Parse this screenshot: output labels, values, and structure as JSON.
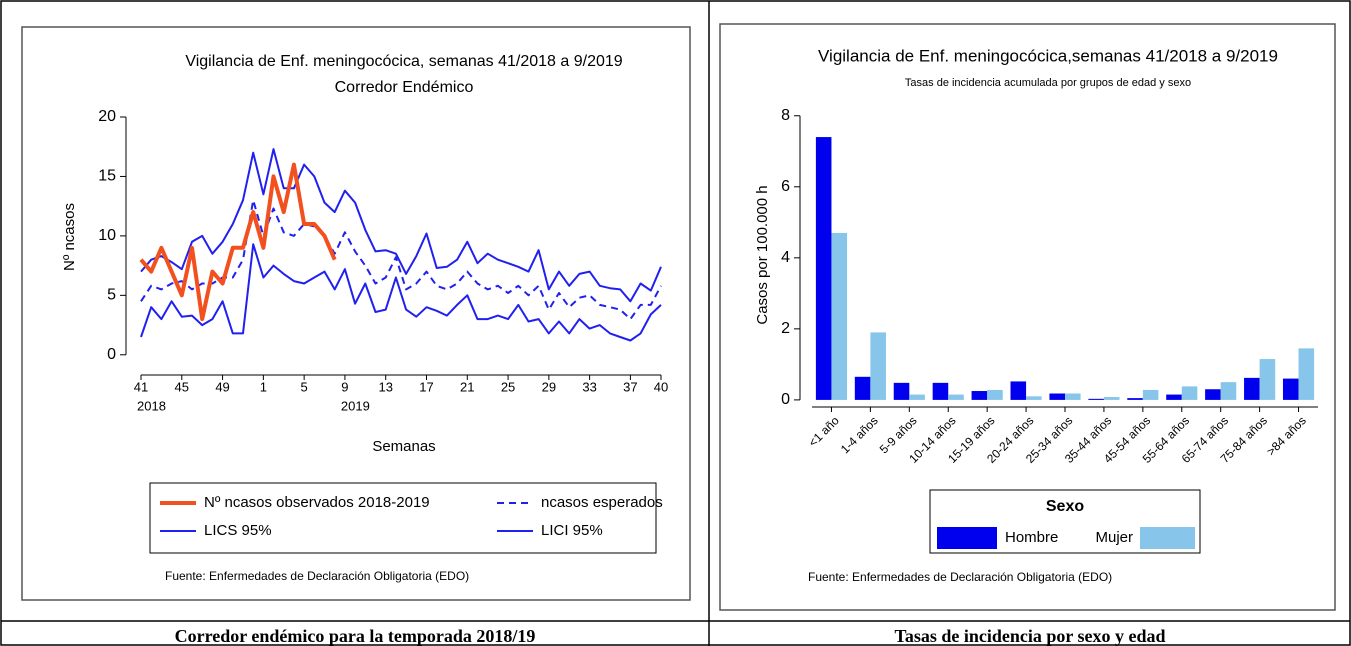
{
  "chart_data": [
    {
      "type": "line",
      "title": "Vigilancia de Enf. meningocócica, semanas 41/2018 a 9/2019",
      "subtitle": "Corredor Endémico",
      "ylabel": "Nº ncasos",
      "xlabel": "Semanas",
      "note": "Fuente: Enfermedades de Declaración Obligatoria (EDO)",
      "caption": "Corredor endémico para la temporada 2018/19",
      "categories": [
        "41",
        null,
        null,
        null,
        "45",
        null,
        null,
        null,
        "49",
        null,
        null,
        null,
        "1",
        null,
        null,
        null,
        "5",
        null,
        null,
        null,
        "9",
        null,
        null,
        null,
        "13",
        null,
        null,
        null,
        "17",
        null,
        null,
        null,
        "21",
        null,
        null,
        null,
        "25",
        null,
        null,
        null,
        "29",
        null,
        null,
        null,
        "33",
        null,
        null,
        null,
        "37",
        null,
        null,
        "40"
      ],
      "category_groups": [
        "2018",
        null,
        null,
        null,
        null,
        null,
        null,
        null,
        null,
        null,
        null,
        null,
        null,
        null,
        null,
        null,
        null,
        null,
        null,
        null,
        "2019",
        null,
        null,
        null,
        null,
        null,
        null,
        null,
        null,
        null,
        null,
        null,
        null,
        null,
        null,
        null,
        null,
        null,
        null,
        null,
        null,
        null,
        null,
        null,
        null,
        null,
        null,
        null,
        null,
        null,
        null,
        null
      ],
      "ylim": [
        -1.7,
        20
      ],
      "yticks": [
        0,
        5,
        10,
        15,
        20
      ],
      "series": [
        {
          "name": "Nº ncasos observados 2018-2019",
          "color": "#f2501f",
          "dash": false,
          "width": 4,
          "values": [
            8,
            7,
            9,
            7,
            5,
            9,
            3,
            7,
            6,
            9,
            9,
            12,
            9,
            15,
            12,
            16,
            11,
            11,
            10,
            8,
            null,
            null,
            null,
            null,
            null,
            null,
            null,
            null,
            null,
            null,
            null,
            null,
            null,
            null,
            null,
            null,
            null,
            null,
            null,
            null,
            null,
            null,
            null,
            null,
            null,
            null,
            null,
            null,
            null,
            null,
            null,
            null
          ]
        },
        {
          "name": "ncasos esperados",
          "color": "#2020f0",
          "dash": true,
          "width": 2,
          "values": [
            4.5,
            5.8,
            5.5,
            6,
            6.2,
            5.5,
            6,
            6,
            6.5,
            6.5,
            8,
            13,
            10,
            12.3,
            10.3,
            10,
            11,
            10.8,
            10,
            8.5,
            10.3,
            8.7,
            7.5,
            6,
            6.5,
            8.2,
            5.5,
            6,
            7,
            5.8,
            5.5,
            6,
            7,
            6,
            5.5,
            5.8,
            5.2,
            5.8,
            5,
            5.8,
            3.8,
            5.2,
            4,
            4.8,
            5,
            4.2,
            4,
            3.8,
            3,
            4.2,
            4.2,
            5.8
          ]
        },
        {
          "name": "LICS 95%",
          "color": "#2020f0",
          "dash": false,
          "width": 2,
          "values": [
            7,
            8,
            8.3,
            7.8,
            7.2,
            9.5,
            10,
            8.5,
            9.5,
            11,
            13,
            17,
            13.5,
            17.3,
            14,
            14,
            16,
            15,
            12.8,
            12,
            13.8,
            12.8,
            10.5,
            8.7,
            8.8,
            8.5,
            6.8,
            8.3,
            10.2,
            7.3,
            7.4,
            8,
            9.5,
            7.7,
            8.5,
            8,
            7.7,
            7.4,
            7,
            8.8,
            5.5,
            7,
            5.8,
            6.8,
            7,
            5.8,
            5.6,
            5.5,
            4.5,
            6,
            5.4,
            7.4
          ]
        },
        {
          "name": "LICI 95%",
          "color": "#2020f0",
          "dash": false,
          "width": 2,
          "values": [
            1.5,
            4,
            3,
            4.5,
            3.2,
            3.3,
            2.5,
            3,
            4.5,
            1.8,
            1.8,
            9.3,
            6.5,
            7.5,
            6.8,
            6.2,
            6,
            6.5,
            7,
            5.5,
            7.2,
            4.3,
            6,
            3.6,
            3.8,
            6.5,
            3.8,
            3.2,
            4,
            3.7,
            3.3,
            4.2,
            5,
            3,
            3,
            3.3,
            3,
            4.2,
            2.8,
            3,
            1.8,
            2.8,
            1.8,
            3,
            2.2,
            2.5,
            1.8,
            1.5,
            1.2,
            1.8,
            3.4,
            4.2
          ]
        }
      ]
    },
    {
      "type": "bar",
      "title": "Vigilancia de Enf. meningocócica,semanas 41/2018 a 9/2019",
      "subtitle": "Tasas de incidencia acumulada por grupos de edad y sexo",
      "ylabel": "Casos por 100.000 h",
      "legend_title": "Sexo",
      "note": "Fuente: Enfermedades de Declaración Obligatoria (EDO)",
      "caption": "Tasas de incidencia por sexo y edad",
      "categories": [
        "<1 año",
        "1-4 años",
        "5-9 años",
        "10-14 años",
        "15-19 años",
        "20-24 años",
        "25-34 años",
        "35-44 años",
        "45-54 años",
        "55-64 años",
        "65-74 años",
        "75-84 años",
        ">84 años"
      ],
      "ylim": [
        -0.2,
        8.5
      ],
      "yticks": [
        0,
        2,
        4,
        6,
        8
      ],
      "series": [
        {
          "name": "Hombre",
          "color": "#0000ee",
          "values": [
            7.4,
            0.65,
            0.48,
            0.48,
            0.25,
            0.52,
            0.18,
            0.03,
            0.05,
            0.15,
            0.3,
            0.62,
            0.6
          ]
        },
        {
          "name": "Mujer",
          "color": "#87c5ea",
          "values": [
            4.7,
            1.9,
            0.15,
            0.15,
            0.28,
            0.1,
            0.18,
            0.08,
            0.28,
            0.38,
            0.5,
            1.15,
            1.45
          ]
        }
      ]
    }
  ]
}
